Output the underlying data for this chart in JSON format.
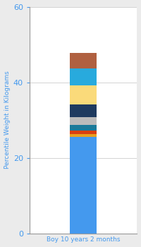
{
  "category": "Boy 10 years 2 months",
  "segments": [
    {
      "value": 25.5,
      "color": "#4499EE"
    },
    {
      "value": 0.7,
      "color": "#E8A020"
    },
    {
      "value": 1.0,
      "color": "#D94010"
    },
    {
      "value": 1.5,
      "color": "#1A7A9A"
    },
    {
      "value": 2.0,
      "color": "#BBBBBB"
    },
    {
      "value": 3.5,
      "color": "#1E3A5F"
    },
    {
      "value": 5.0,
      "color": "#FADA7A"
    },
    {
      "value": 4.5,
      "color": "#28AADD"
    },
    {
      "value": 4.0,
      "color": "#B06040"
    }
  ],
  "ylim": [
    0,
    60
  ],
  "yticks": [
    0,
    20,
    40,
    60
  ],
  "ylabel": "Percentile Weight in Kilograms",
  "xlabel": "Boy 10 years 2 months",
  "background_color": "#EBEBEB",
  "plot_bg_color": "#FFFFFF",
  "tick_color": "#4499EE",
  "label_color": "#4499EE",
  "bar_width": 0.35
}
